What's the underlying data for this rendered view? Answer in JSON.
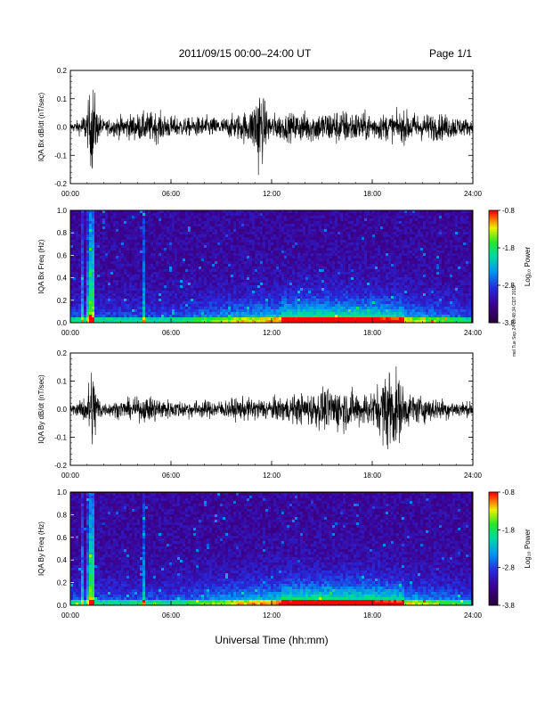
{
  "header": {
    "title": "2011/09/15  00:00–24:00 UT",
    "page": "Page 1/1"
  },
  "side_stamp": "mel Tue Sep 24 19:48:34 CDT 2019",
  "chart_data": [
    {
      "type": "line",
      "ylabel": "IQA Bx dB/dt (nT/sec)",
      "xlim": [
        0,
        24
      ],
      "ylim": [
        -0.2,
        0.2
      ],
      "yticks": [
        "0.2",
        "0.1",
        "0.0",
        "-0.1",
        "-0.2"
      ],
      "xticks": [
        "00:00",
        "06:00",
        "12:00",
        "18:00",
        "24:00"
      ],
      "envelope": {
        "x": [
          0,
          0.5,
          1.0,
          1.3,
          1.6,
          2,
          3,
          4,
          5,
          6,
          7,
          8,
          9,
          10,
          10.8,
          11.2,
          11.7,
          12,
          13,
          14,
          15,
          16,
          17,
          18,
          19,
          20,
          21,
          22,
          23,
          24
        ],
        "amplitude": [
          0.02,
          0.03,
          0.08,
          0.22,
          0.08,
          0.03,
          0.05,
          0.06,
          0.07,
          0.05,
          0.04,
          0.05,
          0.04,
          0.06,
          0.08,
          0.22,
          0.08,
          0.06,
          0.06,
          0.07,
          0.07,
          0.08,
          0.07,
          0.06,
          0.06,
          0.07,
          0.06,
          0.06,
          0.05,
          0.03
        ]
      }
    },
    {
      "type": "heatmap",
      "ylabel": "IQA Bx Freq (Hz)",
      "xlim": [
        0,
        24
      ],
      "ylim": [
        0.0,
        1.0
      ],
      "yticks": [
        "1.0",
        "0.8",
        "0.6",
        "0.4",
        "0.2",
        "0.0"
      ],
      "xticks": [
        "00:00",
        "06:00",
        "12:00",
        "18:00",
        "24:00"
      ],
      "colorbar": {
        "label": "Log₁₀ Power",
        "ticks": [
          "-0.8",
          "-1.8",
          "-2.8",
          "-3.8"
        ],
        "range": [
          -3.8,
          -0.8
        ]
      }
    },
    {
      "type": "line",
      "ylabel": "IQA By dB/dt (nT/sec)",
      "xlim": [
        0,
        24
      ],
      "ylim": [
        -0.2,
        0.2
      ],
      "yticks": [
        "0.2",
        "0.1",
        "0.0",
        "-0.1",
        "-0.2"
      ],
      "xticks": [
        "00:00",
        "06:00",
        "12:00",
        "18:00",
        "24:00"
      ],
      "envelope": {
        "x": [
          0,
          0.5,
          1.0,
          1.3,
          1.6,
          2,
          3,
          4,
          5,
          6,
          7,
          8,
          9,
          10,
          11,
          12,
          13,
          14,
          15,
          16,
          17,
          18,
          18.5,
          19,
          19.5,
          20,
          21,
          22,
          23,
          24
        ],
        "amplitude": [
          0.02,
          0.03,
          0.08,
          0.22,
          0.08,
          0.03,
          0.04,
          0.05,
          0.06,
          0.04,
          0.04,
          0.04,
          0.04,
          0.05,
          0.05,
          0.05,
          0.06,
          0.07,
          0.09,
          0.1,
          0.08,
          0.08,
          0.12,
          0.22,
          0.16,
          0.08,
          0.06,
          0.05,
          0.04,
          0.03
        ]
      }
    },
    {
      "type": "heatmap",
      "ylabel": "IQA By Freq (Hz)",
      "xlim": [
        0,
        24
      ],
      "ylim": [
        0.0,
        1.0
      ],
      "yticks": [
        "1.0",
        "0.8",
        "0.6",
        "0.4",
        "0.2",
        "0.0"
      ],
      "xticks": [
        "00:00",
        "06:00",
        "12:00",
        "18:00",
        "24:00"
      ],
      "colorbar": {
        "label": "Log₁₀ Power",
        "ticks": [
          "-0.8",
          "-1.8",
          "-2.8",
          "-3.8"
        ],
        "range": [
          -3.8,
          -0.8
        ]
      }
    }
  ],
  "xlabel": "Universal Time (hh:mm)"
}
